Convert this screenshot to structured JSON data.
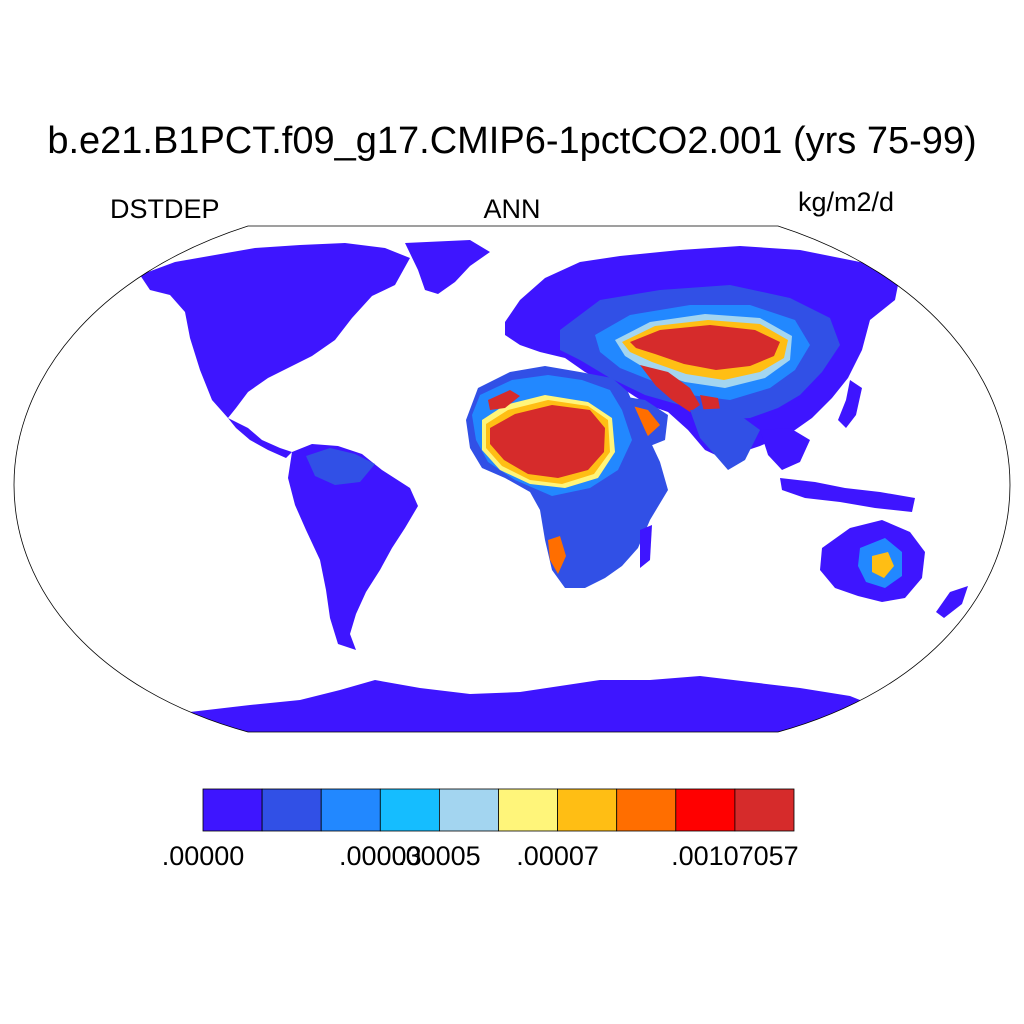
{
  "title": "b.e21.B1PCT.f09_g17.CMIP6-1pctCO2.001 (yrs 75-99)",
  "left_label": "DSTDEP",
  "center_label": "ANN",
  "right_label": "kg/m2/d",
  "projection": "Robinson",
  "colorbar": {
    "colors": [
      "#3e15ff",
      "#3150e6",
      "#2288ff",
      "#15bdff",
      "#a3d5f0",
      "#fff57a",
      "#ffbe14",
      "#ff6e00",
      "#ff0000",
      "#d62b2b"
    ],
    "tick_labels": [
      {
        "text": ".00000",
        "boundary": 0
      },
      {
        "text": ".00003",
        "boundary": 3
      },
      {
        "text": ".00005",
        "boundary": 4
      },
      {
        "text": ".00007",
        "boundary": 6
      },
      {
        "text": ".00107057",
        "boundary": 9
      }
    ]
  }
}
